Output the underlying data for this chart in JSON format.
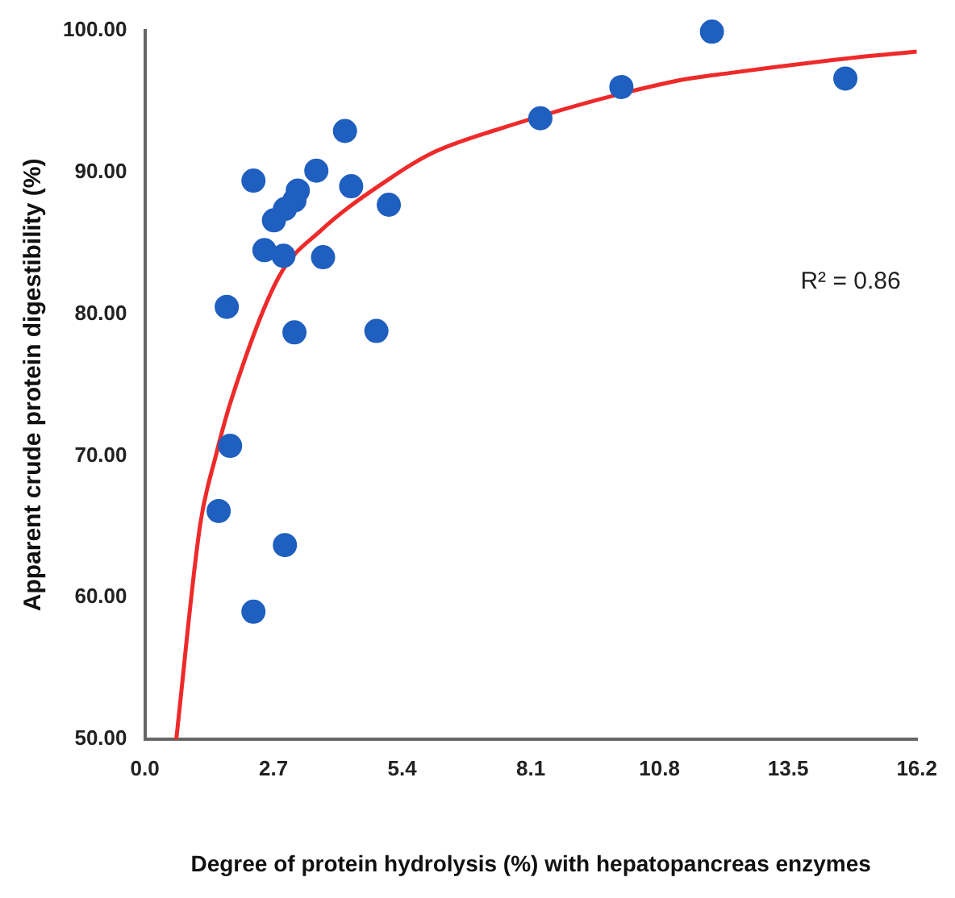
{
  "chart_data": {
    "type": "scatter",
    "xlabel": "Degree of protein hydrolysis (%) with hepatopancreas enzymes",
    "ylabel": "Apparent crude protein digestibility (%)",
    "xlim": [
      0,
      16.2
    ],
    "xticks": [
      {
        "value": 0,
        "label": "0.0"
      },
      2.7,
      5.4,
      8.1,
      10.8,
      13.5,
      16.2
    ],
    "ylim": [
      50,
      100
    ],
    "yticks": [
      {
        "value": 50,
        "label": "50.00"
      },
      {
        "value": 60,
        "label": "60.00"
      },
      {
        "value": 70,
        "label": "70.00"
      },
      {
        "value": 80,
        "label": "80.00"
      },
      {
        "value": 90,
        "label": "90.00"
      },
      {
        "value": 100,
        "label": "100.00"
      }
    ],
    "grid": false,
    "legend": false,
    "annotations": [
      "R² = 0.86"
    ],
    "series": [
      {
        "type": "scatter",
        "marker": "circle",
        "color": "#1f5fbf",
        "x": [
          1.72,
          1.79,
          1.55,
          2.28,
          2.94,
          2.28,
          2.51,
          2.71,
          2.91,
          2.94,
          3.14,
          3.21,
          3.14,
          3.6,
          3.74,
          4.2,
          4.33,
          4.86,
          5.12,
          8.3,
          10.0,
          11.9,
          14.7
        ],
        "values": [
          80.5,
          70.7,
          66.1,
          59.0,
          63.7,
          89.4,
          84.5,
          86.6,
          84.1,
          87.4,
          88.0,
          88.7,
          78.7,
          90.1,
          84.0,
          92.9,
          89.0,
          78.8,
          87.7,
          93.8,
          96.0,
          99.9,
          96.6
        ]
      },
      {
        "type": "line",
        "marker": "none",
        "color": "#ee2a2a",
        "x": [
          0.66,
          1.16,
          1.49,
          1.82,
          2.81,
          3.7,
          5.12,
          6.0,
          7.3,
          11.1,
          12.3,
          14.7,
          16.2
        ],
        "values": [
          50,
          65.1,
          70,
          74,
          82.6,
          85.9,
          89.5,
          91.3,
          92.9,
          96.4,
          97.0,
          98.0,
          98.5
        ]
      }
    ]
  }
}
